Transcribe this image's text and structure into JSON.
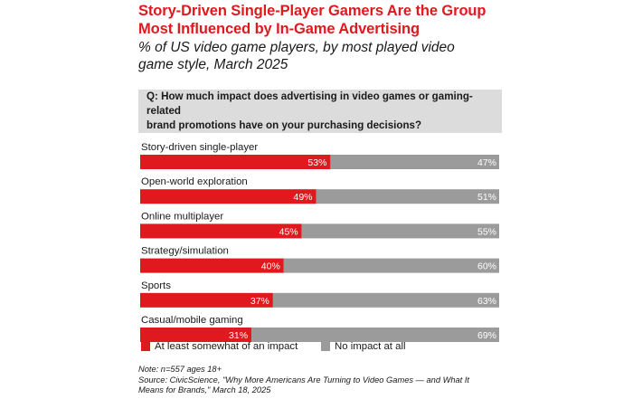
{
  "header": {
    "title_line1": "Story-Driven Single-Player Gamers Are the Group",
    "title_line2": "Most Influenced by In-Game Advertising",
    "subtitle_line1": "% of US video game players, by most played video",
    "subtitle_line2": "game style, March 2025"
  },
  "question": {
    "line1": "Q: How much impact does advertising in video games or gaming-related",
    "line2": "brand promotions have on your purchasing decisions?"
  },
  "colors": {
    "impact": "#e0191e",
    "no_impact": "#9b9b9b",
    "title": "#e0191e"
  },
  "chart_data": {
    "type": "bar",
    "orientation": "horizontal",
    "stacked": true,
    "value_suffix": "%",
    "categories": [
      "Story-driven single-player",
      "Open-world exploration",
      "Online multiplayer",
      "Strategy/simulation",
      "Sports",
      "Casual/mobile gaming"
    ],
    "series": [
      {
        "name": "At least somewhat of an impact",
        "values": [
          53,
          49,
          45,
          40,
          37,
          31
        ]
      },
      {
        "name": "No impact at all",
        "values": [
          47,
          51,
          55,
          60,
          63,
          69
        ]
      }
    ],
    "xlim": [
      0,
      100
    ],
    "legend_position": "bottom"
  },
  "footer": {
    "note": "Note: n=557 ages 18+",
    "source_line1": "Source: CivicScience, \"Why More Americans Are Turning to Video Games — and What It",
    "source_line2": "Means for Brands,\" March 18, 2025"
  }
}
